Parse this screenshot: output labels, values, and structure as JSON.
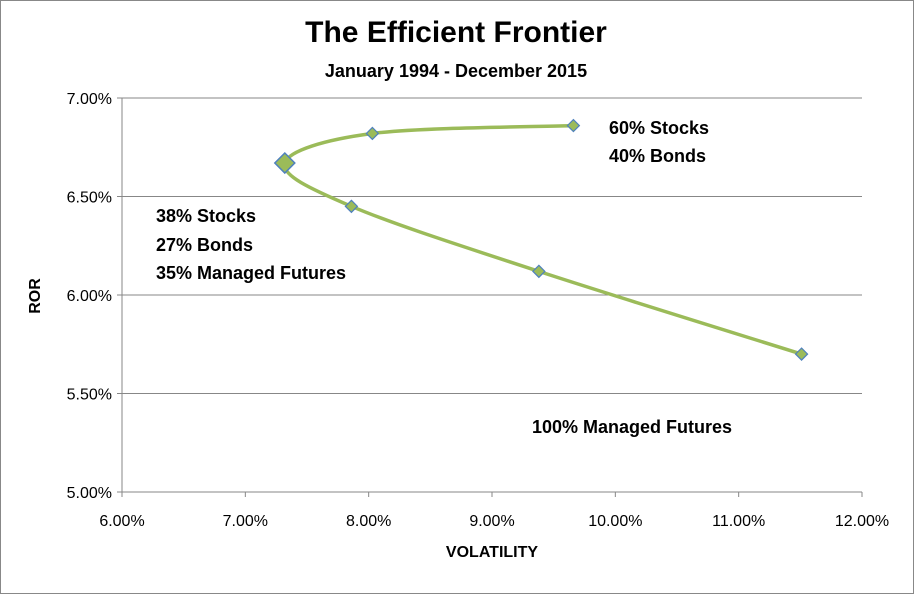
{
  "chart_data": {
    "type": "scatter",
    "title": "The Efficient Frontier",
    "subtitle": "January 1994 - December 2015",
    "xlabel": "VOLATILITY",
    "ylabel": "ROR",
    "xlim": [
      6.0,
      12.0
    ],
    "ylim": [
      5.0,
      7.0
    ],
    "x_ticks": [
      "6.00%",
      "7.00%",
      "8.00%",
      "9.00%",
      "10.00%",
      "11.00%",
      "12.00%"
    ],
    "y_ticks": [
      "5.00%",
      "5.50%",
      "6.00%",
      "6.50%",
      "7.00%"
    ],
    "grid": "horizontal",
    "line_color": "#9bbb59",
    "marker_color": "#9bbb59",
    "marker_edge_color": "#4f81bd",
    "series": [
      {
        "points": [
          {
            "x": 9.66,
            "y": 6.86
          },
          {
            "x": 8.03,
            "y": 6.82
          },
          {
            "x": 7.32,
            "y": 6.67
          },
          {
            "x": 7.86,
            "y": 6.45
          },
          {
            "x": 9.38,
            "y": 6.12
          },
          {
            "x": 11.51,
            "y": 5.7
          }
        ],
        "highlight_index": 2
      }
    ],
    "annotations": [
      {
        "lines": [
          "60% Stocks",
          "40% Bonds"
        ]
      },
      {
        "lines": [
          "38% Stocks",
          "27% Bonds",
          "35% Managed Futures"
        ]
      },
      {
        "lines": [
          "100% Managed Futures"
        ]
      }
    ]
  }
}
